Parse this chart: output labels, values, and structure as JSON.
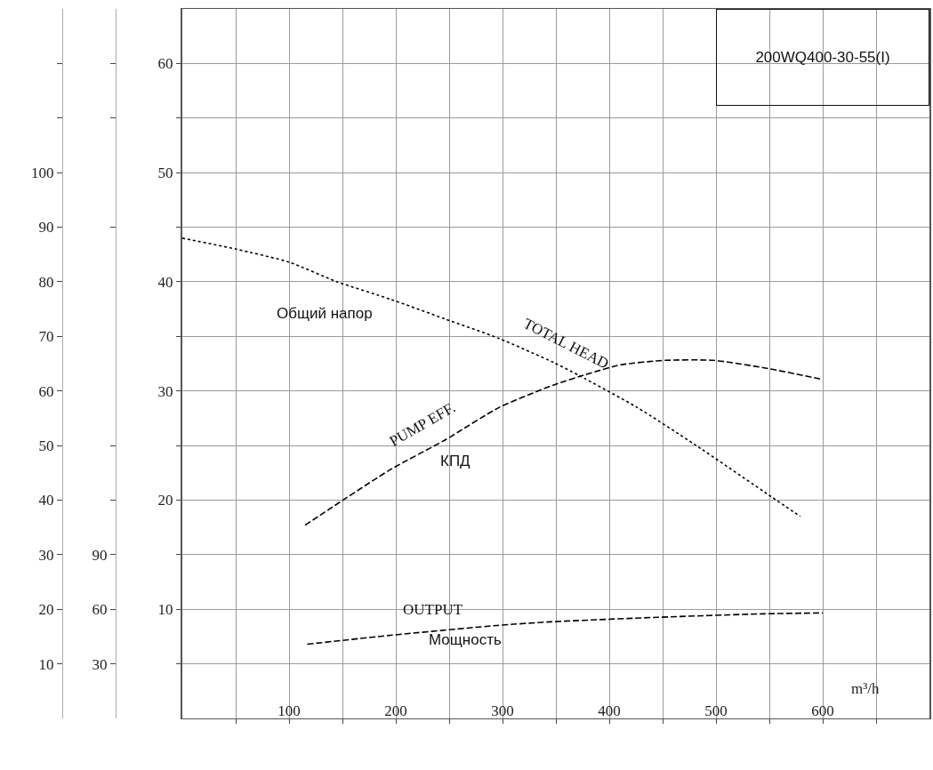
{
  "chart_data": {
    "type": "line",
    "title": "200WQ400-30-55(I)",
    "xlabel": "m³/h",
    "xlim": [
      0,
      700
    ],
    "xticks": [
      {
        "value": 50,
        "label": null
      },
      100,
      {
        "value": 150,
        "label": null
      },
      200,
      {
        "value": 250,
        "label": null
      },
      300,
      {
        "value": 350,
        "label": null
      },
      400,
      {
        "value": 450,
        "label": null
      },
      500,
      {
        "value": 550,
        "label": null
      },
      600,
      {
        "value": 650,
        "label": null
      }
    ],
    "ylim": [
      0,
      65
    ],
    "yticks": [
      {
        "value": 5,
        "label": null
      },
      10,
      {
        "value": 15,
        "label": null
      },
      20,
      {
        "value": 25,
        "label": null
      },
      30,
      {
        "value": 35,
        "label": null
      },
      40,
      {
        "value": 45,
        "label": null
      },
      50,
      {
        "value": 55,
        "label": null
      },
      60
    ],
    "y2lim": [
      0,
      130
    ],
    "y2ticks": [
      10,
      20,
      30,
      40,
      50,
      60,
      70,
      80,
      90,
      100,
      {
        "value": 110,
        "label": null
      },
      {
        "value": 120,
        "label": null
      }
    ],
    "y3lim": [
      0,
      390
    ],
    "y3ticks": [
      30,
      60,
      90,
      {
        "value": 120,
        "label": null
      },
      {
        "value": 150,
        "label": null
      },
      {
        "value": 270,
        "label": null
      },
      {
        "value": 330,
        "label": null
      },
      {
        "value": 360,
        "label": null
      }
    ],
    "grid": true,
    "marker": "none",
    "series": [
      {
        "color": "#000000",
        "line_style": "dotted",
        "x": [
          0,
          50,
          100,
          145,
          195,
          246,
          297,
          348,
          372,
          426,
          480,
          552,
          579
        ],
        "values": [
          44,
          43,
          41.8,
          40,
          38.4,
          36.6,
          34.8,
          32.6,
          31.4,
          28.5,
          25.1,
          20.3,
          18.5
        ]
      },
      {
        "color": "#000000",
        "line_style": "dashed",
        "axis": "y2",
        "x": [
          115,
          195,
          246,
          297,
          348,
          383,
          411,
          452,
          498,
          549,
          600
        ],
        "values": [
          35.4,
          45.6,
          51.0,
          57.0,
          61.1,
          63.3,
          64.8,
          65.6,
          65.6,
          64.1,
          62.1
        ]
      },
      {
        "color": "#000000",
        "line_style": "dashed",
        "axis": "y3",
        "x": [
          117,
          195,
          295,
          345,
          446,
          545,
          600
        ],
        "values": [
          40.8,
          45.7,
          51.1,
          53.1,
          55.6,
          57.5,
          58.0
        ]
      }
    ],
    "annotations": [
      "Общий напор",
      "TOTAL HEAD",
      "PUMP EFF.",
      "КПД",
      "OUTPUT",
      "Мощность"
    ]
  }
}
